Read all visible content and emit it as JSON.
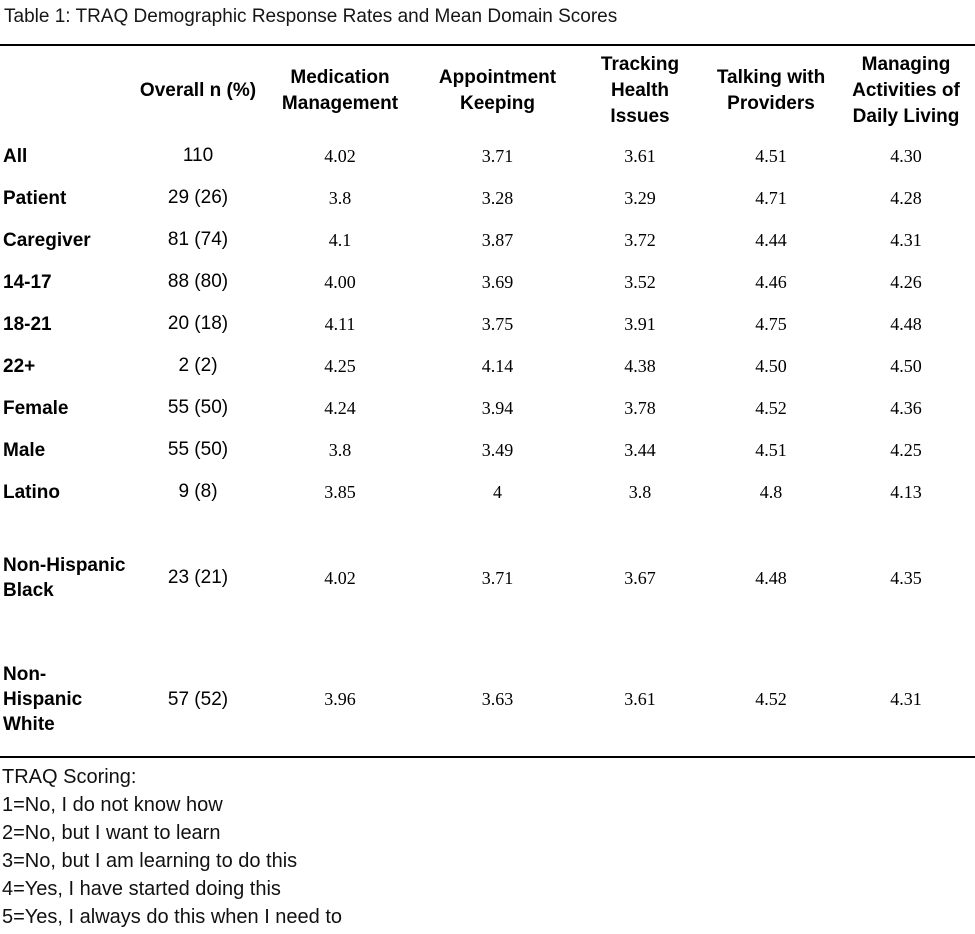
{
  "title": "Table 1: TRAQ Demographic Response Rates and Mean Domain Scores",
  "table": {
    "header": {
      "columns": [
        "Overall n (%)",
        "Medication\nManagement",
        "Appointment\nKeeping",
        "Tracking\nHealth\nIssues",
        "Talking with\nProviders",
        "Managing\nActivities of\nDaily Living"
      ]
    },
    "rows": [
      {
        "label": "All",
        "overall_n": "110",
        "scores": [
          "4.02",
          "3.71",
          "3.61",
          "4.51",
          "4.30"
        ]
      },
      {
        "label": "Patient",
        "overall_n": "29 (26)",
        "scores": [
          "3.8",
          "3.28",
          "3.29",
          "4.71",
          "4.28"
        ]
      },
      {
        "label": "Caregiver",
        "overall_n": "81 (74)",
        "scores": [
          "4.1",
          "3.87",
          "3.72",
          "4.44",
          "4.31"
        ]
      },
      {
        "label": "14-17",
        "overall_n": "88 (80)",
        "scores": [
          "4.00",
          "3.69",
          "3.52",
          "4.46",
          "4.26"
        ]
      },
      {
        "label": "18-21",
        "overall_n": "20 (18)",
        "scores": [
          "4.11",
          "3.75",
          "3.91",
          "4.75",
          "4.48"
        ]
      },
      {
        "label": "22+",
        "overall_n": "2 (2)",
        "scores": [
          "4.25",
          "4.14",
          "4.38",
          "4.50",
          "4.50"
        ]
      },
      {
        "label": "Female",
        "overall_n": "55 (50)",
        "scores": [
          "4.24",
          "3.94",
          "3.78",
          "4.52",
          "4.36"
        ]
      },
      {
        "label": "Male",
        "overall_n": "55 (50)",
        "scores": [
          "3.8",
          "3.49",
          "3.44",
          "4.51",
          "4.25"
        ]
      },
      {
        "label": "Latino",
        "overall_n": "9 (8)",
        "scores": [
          "3.85",
          "4",
          "3.8",
          "4.8",
          "4.13"
        ]
      },
      {
        "label": "Non-Hispanic\nBlack",
        "overall_n": "23 (21)",
        "scores": [
          "4.02",
          "3.71",
          "3.67",
          "4.48",
          "4.35"
        ]
      },
      {
        "label": "Non-\nHispanic\nWhite",
        "overall_n": "57 (52)",
        "scores": [
          "3.96",
          "3.63",
          "3.61",
          "4.52",
          "4.31"
        ]
      }
    ]
  },
  "scoring": {
    "heading": "TRAQ Scoring:",
    "items": [
      "1=No, I do not know how",
      "2=No, but I want to learn",
      "3=No, but I am learning to do this",
      "4=Yes, I have started doing this",
      "5=Yes, I always do this when I need to"
    ]
  },
  "colors": {
    "text": "#000000",
    "background": "#ffffff",
    "rule": "#000000"
  }
}
